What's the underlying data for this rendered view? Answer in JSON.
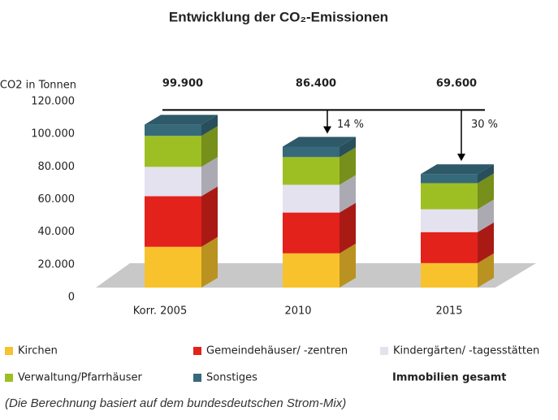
{
  "chart_data": {
    "type": "bar3d-stacked",
    "title": "Entwicklung der CO₂-Emissionen",
    "y_label": "CO2 in Tonnen",
    "categories": [
      "Korr. 2005",
      "2010",
      "2015"
    ],
    "series": [
      {
        "name": "Kirchen",
        "color": "#f7c22c",
        "values": [
          25000,
          21000,
          15000
        ]
      },
      {
        "name": "Gemeindehäuser/ -zentren",
        "color": "#e3221c",
        "values": [
          31000,
          25000,
          19000
        ]
      },
      {
        "name": "Kindergärten/ -tagesstätten",
        "color": "#e4e2ee",
        "values": [
          18000,
          17000,
          14000
        ]
      },
      {
        "name": "Verwaltung/Pfarrhäuser",
        "color": "#9ebf24",
        "values": [
          19000,
          17000,
          16000
        ]
      },
      {
        "name": "Sonstiges",
        "color": "#36697a",
        "values": [
          6900,
          6400,
          5600
        ]
      }
    ],
    "totals": {
      "name": "Immobilien gesamt",
      "values": [
        99900,
        86400,
        69600
      ],
      "value_labels": [
        "99.900",
        "86.400",
        "69.600"
      ]
    },
    "annotations": [
      "14 %",
      "30 %"
    ],
    "ylim": [
      0,
      120000
    ],
    "yticks": [
      0,
      {
        "value": 20000,
        "label": "20.000"
      },
      {
        "value": 40000,
        "label": "40.000"
      },
      {
        "value": 60000,
        "label": "60.000"
      },
      {
        "value": 80000,
        "label": "80.000"
      },
      {
        "value": 100000,
        "label": "100.000"
      },
      {
        "value": 120000,
        "label": "120.000"
      }
    ],
    "note": "(Die Berechnung basiert auf dem bundesdeutschen Strom-Mix)"
  }
}
